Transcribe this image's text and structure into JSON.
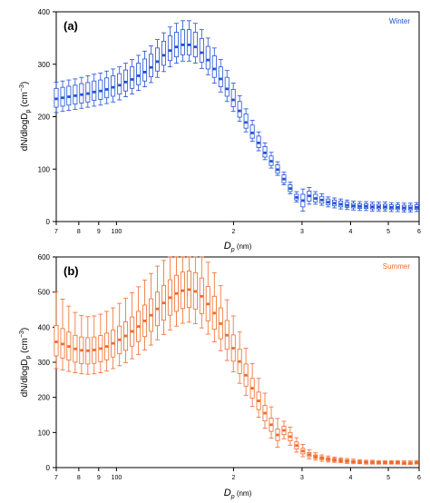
{
  "chart_data": [
    {
      "type": "box",
      "panel_label": "(a)",
      "series_name": "Winter",
      "ylabel_main": "dN/dlogD",
      "ylabel_sub": "p",
      "ylabel_units": " (cm",
      "ylabel_exp": "−3",
      "ylabel_close": ")",
      "xlabel_main": "D",
      "xlabel_sub": "p",
      "xlabel_units": " (nm)",
      "color": "#1f4fd6",
      "xlim": [
        70,
        600
      ],
      "ylim": [
        0,
        400
      ],
      "x_log": true,
      "yticks": [
        0,
        100,
        200,
        300,
        400
      ],
      "ytick_labels": [
        "0",
        "100",
        "200",
        "300",
        "400"
      ],
      "xticks": [
        70,
        80,
        90,
        100,
        200,
        300,
        400,
        500,
        600
      ],
      "xtick_labels": [
        "7",
        "8",
        "9",
        "100",
        "2",
        "3",
        "4",
        "5",
        "6"
      ],
      "x": [
        70,
        72.7,
        75.4,
        78.3,
        81.3,
        84.4,
        87.6,
        91,
        94.4,
        98,
        101.8,
        105.6,
        109.7,
        113.9,
        118.2,
        122.7,
        127.4,
        132.3,
        137.3,
        142.6,
        148,
        153.7,
        159.5,
        165.6,
        171.9,
        178.5,
        185.3,
        192.4,
        199.7,
        207.3,
        215.2,
        223.5,
        232,
        240.8,
        250,
        259.6,
        269.5,
        279.7,
        290.4,
        301.5,
        313,
        324.9,
        337.3,
        350.2,
        363.5,
        377.4,
        391.8,
        406.7,
        422.3,
        438.4,
        455.1,
        472.4,
        490.5,
        509.2,
        528.6,
        548.8,
        569.7,
        591.4
      ],
      "median": [
        234,
        236,
        238,
        240,
        242,
        244,
        247,
        249,
        252,
        256,
        260,
        266,
        271,
        278,
        285,
        294,
        305,
        317,
        326,
        333,
        337,
        337,
        333,
        322,
        308,
        291,
        272,
        253,
        232,
        211,
        189,
        169,
        150,
        131,
        115,
        99,
        81,
        63,
        46,
        40,
        49,
        44,
        41,
        37,
        35,
        33,
        31,
        30,
        29,
        29,
        28,
        28,
        28,
        27,
        27,
        26,
        26,
        27
      ],
      "q1": [
        218,
        220,
        222,
        224,
        226,
        228,
        231,
        233,
        236,
        239,
        243,
        249,
        254,
        261,
        268,
        276,
        287,
        298,
        307,
        314,
        318,
        318,
        314,
        304,
        291,
        275,
        257,
        239,
        219,
        199,
        178,
        159,
        141,
        123,
        107,
        92,
        74,
        57,
        41,
        28,
        39,
        37,
        35,
        32,
        30,
        28,
        27,
        26,
        25,
        25,
        24,
        24,
        24,
        23,
        23,
        22,
        22,
        23
      ],
      "q3": [
        254,
        256,
        258,
        260,
        263,
        265,
        268,
        270,
        274,
        278,
        282,
        289,
        295,
        302,
        310,
        319,
        331,
        344,
        354,
        361,
        366,
        366,
        361,
        349,
        334,
        316,
        295,
        275,
        252,
        229,
        205,
        184,
        163,
        143,
        125,
        108,
        89,
        70,
        52,
        52,
        58,
        52,
        48,
        43,
        41,
        39,
        37,
        35,
        34,
        34,
        33,
        33,
        33,
        32,
        32,
        31,
        31,
        32
      ],
      "low": [
        208,
        210,
        212,
        214,
        216,
        218,
        220,
        222,
        225,
        228,
        232,
        238,
        243,
        250,
        257,
        265,
        275,
        286,
        295,
        302,
        306,
        306,
        302,
        292,
        280,
        264,
        247,
        229,
        210,
        191,
        171,
        153,
        135,
        118,
        102,
        88,
        70,
        53,
        37,
        20,
        33,
        33,
        31,
        28,
        26,
        24,
        23,
        22,
        21,
        21,
        20,
        20,
        20,
        19,
        19,
        18,
        18,
        19
      ],
      "high": [
        266,
        268,
        270,
        272,
        275,
        278,
        281,
        283,
        287,
        291,
        295,
        302,
        309,
        317,
        325,
        335,
        347,
        360,
        371,
        378,
        383,
        383,
        378,
        366,
        350,
        331,
        309,
        288,
        264,
        240,
        215,
        193,
        171,
        150,
        132,
        114,
        94,
        75,
        57,
        62,
        65,
        57,
        53,
        47,
        45,
        43,
        41,
        39,
        38,
        38,
        37,
        37,
        37,
        36,
        36,
        35,
        35,
        36
      ]
    },
    {
      "type": "box",
      "panel_label": "(b)",
      "series_name": "Summer",
      "ylabel_main": "dN/dlogD",
      "ylabel_sub": "p",
      "ylabel_units": " (cm",
      "ylabel_exp": "−3",
      "ylabel_close": ")",
      "xlabel_main": "D",
      "xlabel_sub": "p",
      "xlabel_units": " (nm)",
      "color": "#ee6a2a",
      "xlim": [
        70,
        600
      ],
      "ylim": [
        0,
        600
      ],
      "x_log": true,
      "yticks": [
        0,
        100,
        200,
        300,
        400,
        500,
        600
      ],
      "ytick_labels": [
        "0",
        "100",
        "200",
        "300",
        "400",
        "500",
        "600"
      ],
      "xticks": [
        70,
        80,
        90,
        100,
        200,
        300,
        400,
        500,
        600
      ],
      "xtick_labels": [
        "7",
        "8",
        "9",
        "100",
        "2",
        "3",
        "4",
        "5",
        "6"
      ],
      "x": [
        70,
        72.7,
        75.4,
        78.3,
        81.3,
        84.4,
        87.6,
        91,
        94.4,
        98,
        101.8,
        105.6,
        109.7,
        113.9,
        118.2,
        122.7,
        127.4,
        132.3,
        137.3,
        142.6,
        148,
        153.7,
        159.5,
        165.6,
        171.9,
        178.5,
        185.3,
        192.4,
        199.7,
        207.3,
        215.2,
        223.5,
        232,
        240.8,
        250,
        259.6,
        269.5,
        279.7,
        290.4,
        301.5,
        313,
        324.9,
        337.3,
        350.2,
        363.5,
        377.4,
        391.8,
        406.7,
        422.3,
        438.4,
        455.1,
        472.4,
        490.5,
        509.2,
        528.6,
        548.8,
        569.7,
        591.4
      ],
      "median": [
        358,
        352,
        345,
        338,
        334,
        333,
        335,
        339,
        345,
        354,
        364,
        375,
        388,
        402,
        418,
        434,
        452,
        469,
        484,
        496,
        504,
        507,
        502,
        488,
        466,
        440,
        410,
        377,
        340,
        302,
        263,
        226,
        190,
        155,
        122,
        93,
        106,
        88,
        63,
        47,
        37,
        31,
        27,
        24,
        22,
        20,
        18,
        17,
        16,
        15,
        15,
        14,
        14,
        14,
        14,
        13,
        13,
        14
      ],
      "q1": [
        318,
        312,
        306,
        300,
        296,
        295,
        297,
        301,
        307,
        315,
        324,
        334,
        346,
        359,
        373,
        388,
        404,
        420,
        434,
        445,
        453,
        456,
        451,
        438,
        418,
        394,
        367,
        337,
        303,
        268,
        232,
        198,
        165,
        133,
        103,
        77,
        94,
        76,
        53,
        39,
        31,
        26,
        23,
        20,
        18,
        17,
        15,
        14,
        13,
        13,
        12,
        12,
        12,
        12,
        12,
        11,
        11,
        12
      ],
      "q3": [
        405,
        396,
        386,
        377,
        372,
        370,
        372,
        376,
        383,
        392,
        403,
        415,
        429,
        445,
        463,
        481,
        500,
        519,
        535,
        548,
        557,
        560,
        555,
        540,
        516,
        488,
        455,
        419,
        378,
        337,
        295,
        254,
        215,
        177,
        141,
        110,
        118,
        100,
        73,
        55,
        43,
        36,
        31,
        28,
        26,
        24,
        22,
        20,
        19,
        18,
        18,
        17,
        17,
        17,
        17,
        16,
        16,
        17
      ],
      "low": [
        282,
        278,
        274,
        270,
        267,
        266,
        267,
        270,
        275,
        282,
        290,
        299,
        310,
        322,
        335,
        349,
        364,
        379,
        392,
        403,
        411,
        414,
        410,
        398,
        380,
        358,
        333,
        305,
        273,
        240,
        206,
        174,
        143,
        112,
        84,
        58,
        82,
        64,
        44,
        31,
        25,
        21,
        18,
        16,
        15,
        14,
        12,
        11,
        11,
        10,
        10,
        10,
        10,
        10,
        10,
        9,
        9,
        10
      ],
      "high": [
        500,
        480,
        460,
        442,
        433,
        430,
        432,
        437,
        445,
        455,
        468,
        482,
        498,
        515,
        534,
        553,
        574,
        590,
        600,
        600,
        600,
        600,
        600,
        600,
        585,
        555,
        518,
        478,
        432,
        386,
        340,
        296,
        254,
        212,
        173,
        140,
        132,
        115,
        85,
        66,
        51,
        42,
        36,
        33,
        30,
        28,
        26,
        24,
        22,
        21,
        21,
        20,
        20,
        20,
        20,
        19,
        19,
        20
      ]
    }
  ]
}
